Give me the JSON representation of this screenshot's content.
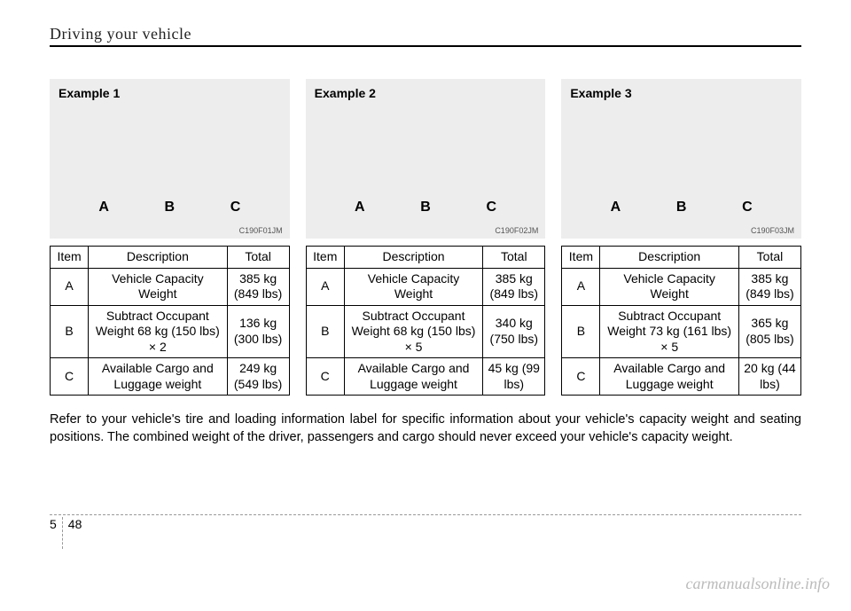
{
  "header": {
    "section_title": "Driving your vehicle"
  },
  "note": "Refer to your vehicle's tire and loading information label for specific information about your vehicle's capacity weight and seating positions. The combined weight of the driver, passengers and cargo should never exceed your vehicle's capacity weight.",
  "footer": {
    "chapter": "5",
    "page": "48"
  },
  "watermark": "carmanualsonline.info",
  "fig_letters": [
    "A",
    "B",
    "C"
  ],
  "table_headers": {
    "item": "Item",
    "description": "Description",
    "total": "Total"
  },
  "examples": [
    {
      "title": "Example 1",
      "code": "C190F01JM",
      "rows": [
        {
          "item": "A",
          "desc": "Vehicle Capacity Weight",
          "total": "385 kg (849 lbs)"
        },
        {
          "item": "B",
          "desc": "Subtract Occupant Weight 68 kg (150 lbs) × 2",
          "total": "136 kg (300 lbs)"
        },
        {
          "item": "C",
          "desc": "Available Cargo and Luggage weight",
          "total": "249 kg (549 lbs)"
        }
      ]
    },
    {
      "title": "Example 2",
      "code": "C190F02JM",
      "rows": [
        {
          "item": "A",
          "desc": "Vehicle Capacity Weight",
          "total": "385 kg (849 lbs)"
        },
        {
          "item": "B",
          "desc": "Subtract Occupant Weight 68 kg (150 lbs) × 5",
          "total": "340 kg (750 lbs)"
        },
        {
          "item": "C",
          "desc": "Available Cargo and Luggage weight",
          "total": "45 kg (99 lbs)"
        }
      ]
    },
    {
      "title": "Example 3",
      "code": "C190F03JM",
      "rows": [
        {
          "item": "A",
          "desc": "Vehicle Capacity Weight",
          "total": "385 kg (849 lbs)"
        },
        {
          "item": "B",
          "desc": "Subtract Occupant Weight 73 kg (161 lbs) × 5",
          "total": "365 kg (805 lbs)"
        },
        {
          "item": "C",
          "desc": "Available Cargo and Luggage weight",
          "total": "20 kg (44 lbs)"
        }
      ]
    }
  ]
}
